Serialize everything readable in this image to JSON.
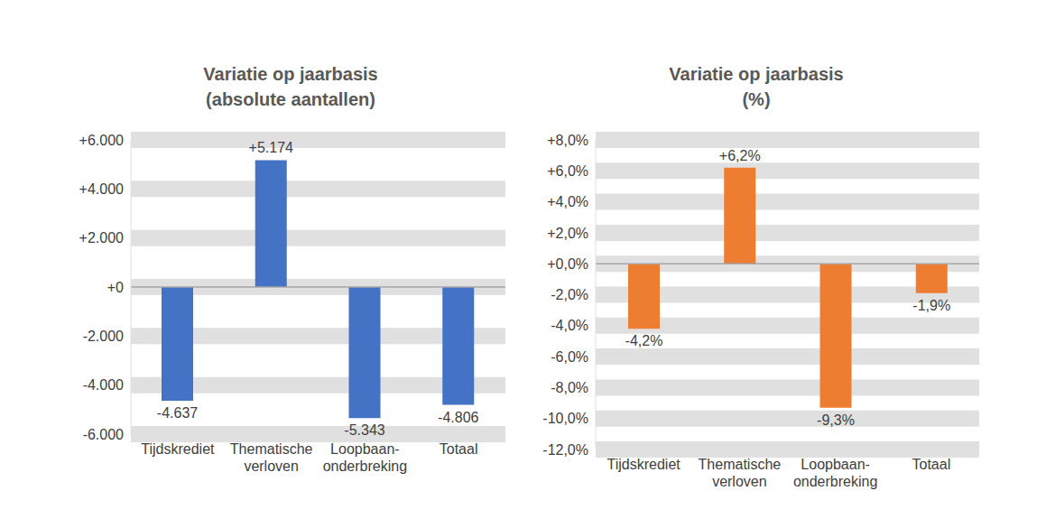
{
  "chart_data": [
    {
      "type": "bar",
      "title": "Variatie op jaarbasis",
      "subtitle": "(absolute aantallen)",
      "categories": [
        "Tijdskrediet",
        "Thematische verloven",
        "Loopbaan-onderbreking",
        "Totaal"
      ],
      "values": [
        -4637,
        5174,
        -5343,
        -4806
      ],
      "value_labels": [
        "-4.637",
        "+5.174",
        "-5.343",
        "-4.806"
      ],
      "color": "#4472c4",
      "ylim": [
        -6000,
        6000
      ],
      "yticks": [
        {
          "value": -6000,
          "label": "-6.000"
        },
        {
          "value": -4000,
          "label": "-4.000"
        },
        {
          "value": -2000,
          "label": "-2.000"
        },
        {
          "value": 0,
          "label": "+0"
        },
        {
          "value": 2000,
          "label": "+2.000"
        },
        {
          "value": 4000,
          "label": "+4.000"
        },
        {
          "value": 6000,
          "label": "+6.000"
        }
      ],
      "grid": true,
      "data_labels": true
    },
    {
      "type": "bar",
      "title": "Variatie op jaarbasis",
      "subtitle": "(%)",
      "categories": [
        "Tijdskrediet",
        "Thematische verloven",
        "Loopbaan-onderbreking",
        "Totaal"
      ],
      "values": [
        -4.2,
        6.2,
        -9.3,
        -1.9
      ],
      "value_labels": [
        "-4,2%",
        "+6,2%",
        "-9,3%",
        "-1,9%"
      ],
      "color": "#ed7d31",
      "ylim": [
        -12,
        8
      ],
      "yticks": [
        {
          "value": -12,
          "label": "-12,0%"
        },
        {
          "value": -10,
          "label": "-10,0%"
        },
        {
          "value": -8,
          "label": "-8,0%"
        },
        {
          "value": -6,
          "label": "-6,0%"
        },
        {
          "value": -4,
          "label": "-4,0%"
        },
        {
          "value": -2,
          "label": "-2,0%"
        },
        {
          "value": 0,
          "label": "+0,0%"
        },
        {
          "value": 2,
          "label": "+2,0%"
        },
        {
          "value": 4,
          "label": "+4,0%"
        },
        {
          "value": 6,
          "label": "+6,0%"
        },
        {
          "value": 8,
          "label": "+8,0%"
        }
      ],
      "grid": true,
      "data_labels": true
    }
  ]
}
